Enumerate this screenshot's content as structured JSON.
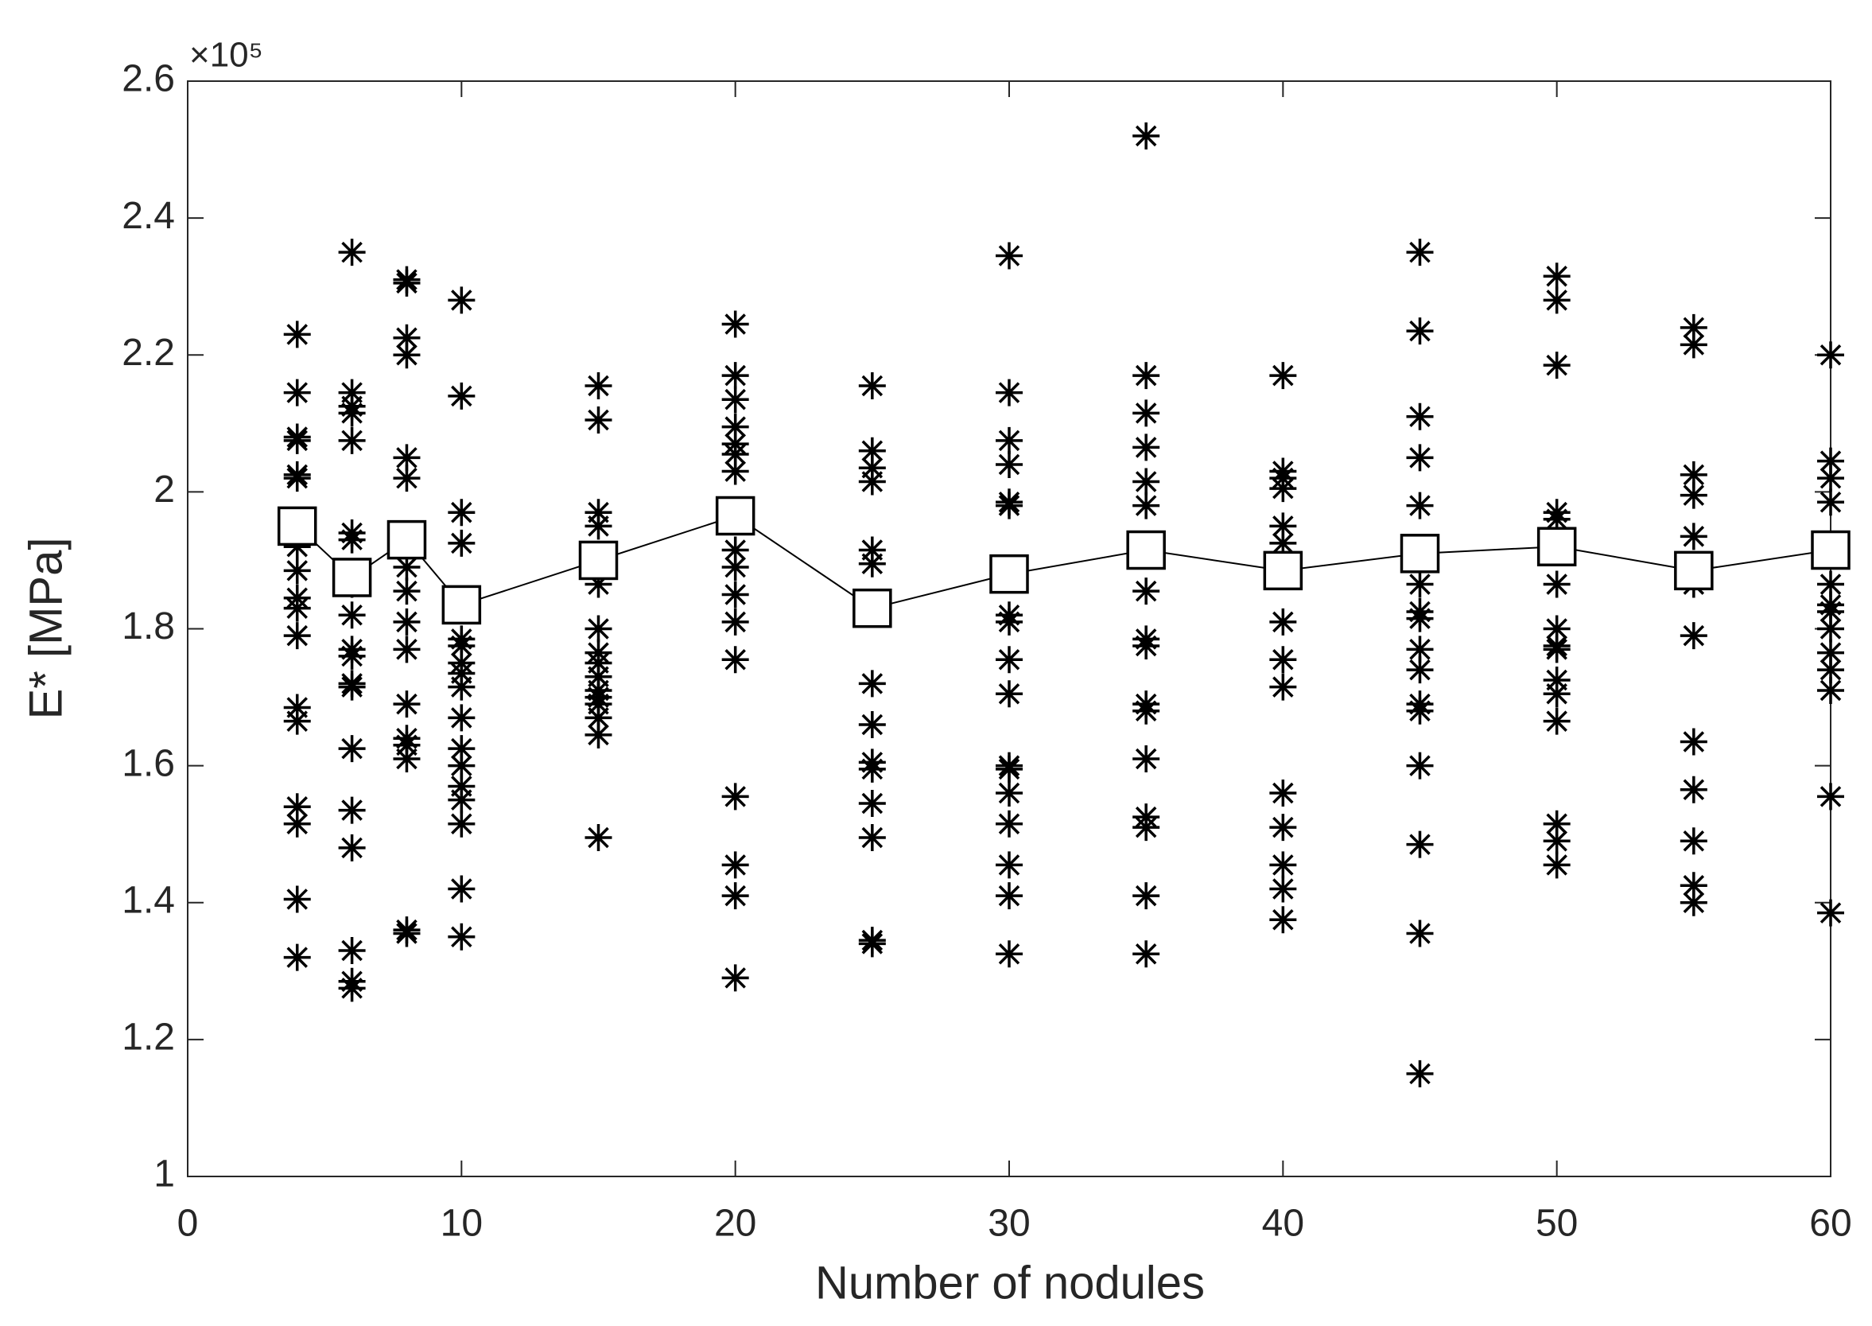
{
  "chart_data": {
    "type": "scatter",
    "xlabel": "Number of nodules",
    "ylabel": "E* [MPa]",
    "y_multiplier": "×10⁵",
    "xlim": [
      0,
      60
    ],
    "xticks": [
      0,
      10,
      20,
      30,
      40,
      50,
      60
    ],
    "ylim": [
      1,
      2.6
    ],
    "yticks": [
      1,
      1.2,
      1.4,
      1.6,
      1.8,
      2,
      2.2,
      2.4,
      2.6
    ],
    "color": "#000000",
    "marker": "asterisk",
    "mean_marker": "square",
    "groups": [
      {
        "x": 4,
        "values": [
          2.23,
          2.145,
          2.08,
          2.075,
          2.025,
          2.02,
          1.955,
          1.92,
          1.885,
          1.845,
          1.83,
          1.79,
          1.685,
          1.665,
          1.54,
          1.515,
          1.405,
          1.32
        ]
      },
      {
        "x": 6,
        "values": [
          2.35,
          2.145,
          2.125,
          2.115,
          2.075,
          1.94,
          1.93,
          1.865,
          1.82,
          1.77,
          1.76,
          1.72,
          1.715,
          1.625,
          1.535,
          1.48,
          1.33,
          1.285,
          1.275
        ]
      },
      {
        "x": 8,
        "values": [
          2.31,
          2.305,
          2.225,
          2.2,
          2.05,
          2.02,
          1.89,
          1.855,
          1.81,
          1.77,
          1.69,
          1.64,
          1.63,
          1.61,
          1.36,
          1.355
        ]
      },
      {
        "x": 10,
        "values": [
          2.28,
          2.14,
          1.97,
          1.925,
          1.785,
          1.775,
          1.75,
          1.735,
          1.715,
          1.67,
          1.625,
          1.6,
          1.57,
          1.55,
          1.515,
          1.42,
          1.35
        ]
      },
      {
        "x": 15,
        "values": [
          2.155,
          2.105,
          1.97,
          1.95,
          1.865,
          1.8,
          1.765,
          1.75,
          1.73,
          1.71,
          1.7,
          1.69,
          1.67,
          1.645,
          1.495
        ]
      },
      {
        "x": 20,
        "values": [
          2.245,
          2.17,
          2.135,
          2.095,
          2.07,
          2.055,
          2.03,
          1.915,
          1.89,
          1.85,
          1.81,
          1.755,
          1.555,
          1.455,
          1.41,
          1.29
        ]
      },
      {
        "x": 25,
        "values": [
          2.155,
          2.06,
          2.035,
          2.015,
          1.915,
          1.895,
          1.72,
          1.66,
          1.605,
          1.595,
          1.545,
          1.495,
          1.345,
          1.34
        ]
      },
      {
        "x": 30,
        "values": [
          2.345,
          2.145,
          2.075,
          2.04,
          1.985,
          1.98,
          1.82,
          1.81,
          1.755,
          1.705,
          1.6,
          1.595,
          1.56,
          1.515,
          1.455,
          1.41,
          1.325
        ]
      },
      {
        "x": 35,
        "values": [
          2.52,
          2.17,
          2.115,
          2.065,
          2.015,
          1.98,
          1.855,
          1.785,
          1.775,
          1.69,
          1.68,
          1.61,
          1.525,
          1.51,
          1.41,
          1.325
        ]
      },
      {
        "x": 40,
        "values": [
          2.17,
          2.03,
          2.02,
          2.005,
          1.95,
          1.925,
          1.88,
          1.81,
          1.755,
          1.715,
          1.56,
          1.51,
          1.455,
          1.42,
          1.375
        ]
      },
      {
        "x": 45,
        "values": [
          2.35,
          2.235,
          2.11,
          2.05,
          1.98,
          1.865,
          1.825,
          1.815,
          1.77,
          1.74,
          1.69,
          1.68,
          1.6,
          1.485,
          1.355,
          1.15
        ]
      },
      {
        "x": 50,
        "values": [
          2.315,
          2.28,
          2.185,
          1.97,
          1.96,
          1.865,
          1.8,
          1.775,
          1.77,
          1.725,
          1.705,
          1.665,
          1.515,
          1.49,
          1.455
        ]
      },
      {
        "x": 55,
        "values": [
          2.24,
          2.215,
          2.025,
          1.995,
          1.935,
          1.865,
          1.79,
          1.635,
          1.565,
          1.49,
          1.425,
          1.4
        ]
      },
      {
        "x": 60,
        "values": [
          2.2,
          2.045,
          2.02,
          1.985,
          1.865,
          1.835,
          1.825,
          1.8,
          1.765,
          1.74,
          1.71,
          1.555,
          1.385
        ]
      }
    ],
    "mean": {
      "x": [
        4,
        6,
        8,
        10,
        15,
        20,
        25,
        30,
        35,
        40,
        45,
        50,
        55,
        60
      ],
      "values": [
        1.95,
        1.875,
        1.93,
        1.835,
        1.9,
        1.965,
        1.83,
        1.88,
        1.915,
        1.885,
        1.91,
        1.92,
        1.885,
        1.915
      ]
    }
  }
}
